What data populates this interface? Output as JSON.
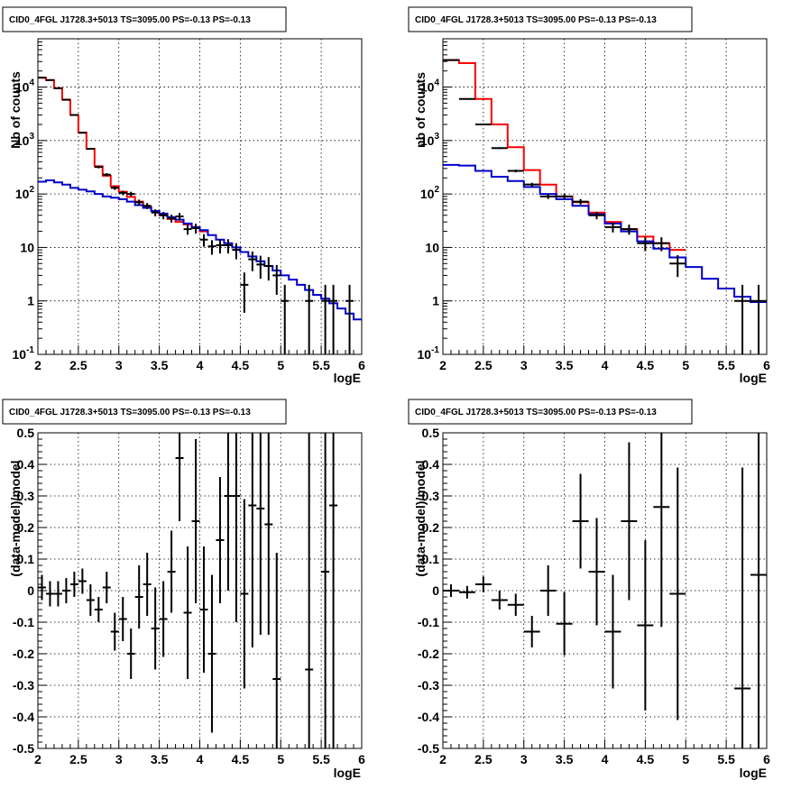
{
  "chart_data": [
    {
      "id": "p1",
      "type": "line",
      "title": "CID0_4FGL J1728.3+5013 TS=3095.00 PS=-0.13 PS=-0.13",
      "xlabel": "logE",
      "ylabel": "Nb of counts",
      "xlim": [
        2,
        6
      ],
      "ylim": [
        0.1,
        80000
      ],
      "yscale": "log",
      "grid": true,
      "xticks": [
        "2",
        "2.5",
        "3",
        "3.5",
        "4",
        "4.5",
        "5",
        "5.5",
        "6"
      ],
      "xtick_values": [
        2,
        2.5,
        3,
        3.5,
        4,
        4.5,
        5,
        5.5,
        6
      ],
      "yticks": [
        "10^-1",
        "1",
        "10",
        "10^2",
        "10^3",
        "10^4"
      ],
      "ytick_values": [
        0.1,
        1,
        10,
        100,
        1000,
        10000
      ],
      "bin_width": 0.1,
      "series": [
        {
          "color": "#ff0000",
          "style": "step",
          "x": [
            2.0,
            2.1,
            2.2,
            2.3,
            2.4,
            2.5,
            2.6,
            2.7,
            2.8,
            2.9,
            3.0,
            3.1,
            3.2,
            3.3,
            3.4,
            3.5,
            3.6,
            3.7,
            3.8,
            3.9,
            4.0
          ],
          "y": [
            15000,
            13500,
            9500,
            5800,
            3000,
            1400,
            700,
            330,
            220,
            140,
            110,
            88,
            72,
            58,
            48,
            40,
            34,
            30,
            27,
            24,
            20
          ]
        },
        {
          "color": "#0000cc",
          "style": "step",
          "x": [
            2.0,
            2.1,
            2.2,
            2.3,
            2.4,
            2.5,
            2.6,
            2.7,
            2.8,
            2.9,
            3.0,
            3.1,
            3.2,
            3.3,
            3.4,
            3.5,
            3.6,
            3.7,
            3.8,
            3.9,
            4.0,
            4.1,
            4.2,
            4.3,
            4.4,
            4.5,
            4.6,
            4.7,
            4.8,
            4.9,
            5.0,
            5.1,
            5.2,
            5.3,
            5.4,
            5.5,
            5.6,
            5.7,
            5.8,
            5.9
          ],
          "y": [
            170,
            180,
            165,
            150,
            130,
            120,
            112,
            100,
            90,
            85,
            80,
            72,
            62,
            55,
            48,
            43,
            37,
            33,
            28,
            24,
            21,
            17,
            14,
            12,
            10,
            8.2,
            6.8,
            5.5,
            4.5,
            3.7,
            3.0,
            2.5,
            2.0,
            1.6,
            1.3,
            1.1,
            0.9,
            0.72,
            0.58,
            0.45
          ]
        },
        {
          "color": "#000000",
          "style": "errorbar",
          "x": [
            2.05,
            2.15,
            2.25,
            2.35,
            2.45,
            2.55,
            2.65,
            2.75,
            2.85,
            2.95,
            3.05,
            3.15,
            3.25,
            3.35,
            3.45,
            3.55,
            3.65,
            3.75,
            3.85,
            3.95,
            4.05,
            4.15,
            4.25,
            4.35,
            4.45,
            4.55,
            4.65,
            4.75,
            4.85,
            4.95,
            5.05,
            5.35,
            5.55,
            5.65,
            5.85
          ],
          "y": [
            15000,
            13500,
            9500,
            5800,
            3000,
            1400,
            700,
            320,
            230,
            130,
            105,
            100,
            70,
            60,
            45,
            40,
            35,
            38,
            22,
            23,
            14,
            10.5,
            11,
            11,
            9,
            2,
            6,
            4.8,
            4.5,
            3,
            1,
            1,
            1,
            1,
            1
          ],
          "yerr": [
            120,
            115,
            95,
            75,
            55,
            38,
            27,
            18,
            15,
            11,
            10,
            10,
            8.4,
            7.7,
            6.7,
            6.3,
            5.9,
            6.2,
            4.7,
            4.8,
            3.7,
            3.2,
            3.3,
            3.3,
            3,
            1.4,
            2.4,
            2.2,
            2.1,
            1.7,
            1,
            1,
            1,
            1,
            1
          ]
        }
      ]
    },
    {
      "id": "p2",
      "type": "line",
      "title": "CID0_4FGL J1728.3+5013 TS=3095.00 PS=-0.13 PS=-0.13",
      "xlabel": "logE",
      "ylabel": "nb of counts",
      "xlim": [
        2,
        6
      ],
      "ylim": [
        0.1,
        80000
      ],
      "yscale": "log",
      "grid": true,
      "xticks": [
        "2",
        "2.5",
        "3",
        "3.5",
        "4",
        "4.5",
        "5",
        "5.5",
        "6"
      ],
      "xtick_values": [
        2,
        2.5,
        3,
        3.5,
        4,
        4.5,
        5,
        5.5,
        6
      ],
      "yticks": [
        "10^-1",
        "1",
        "10",
        "10^2",
        "10^3",
        "10^4"
      ],
      "ytick_values": [
        0.1,
        1,
        10,
        100,
        1000,
        10000
      ],
      "bin_width": 0.2,
      "series": [
        {
          "color": "#ff0000",
          "style": "step",
          "x": [
            2.0,
            2.2,
            2.4,
            2.6,
            2.8,
            3.0,
            3.2,
            3.4,
            3.6,
            3.8,
            4.0,
            4.2,
            4.4,
            4.6,
            4.8
          ],
          "y": [
            32000,
            28000,
            6000,
            2000,
            750,
            280,
            150,
            90,
            70,
            45,
            30,
            22,
            16,
            12,
            9
          ]
        },
        {
          "color": "#0000cc",
          "style": "step",
          "x": [
            2.0,
            2.2,
            2.4,
            2.6,
            2.8,
            3.0,
            3.2,
            3.4,
            3.6,
            3.8,
            4.0,
            4.2,
            4.4,
            4.6,
            4.8,
            5.0,
            5.2,
            5.4,
            5.6,
            5.8
          ],
          "y": [
            350,
            340,
            270,
            210,
            175,
            135,
            100,
            80,
            60,
            42,
            28,
            20,
            13,
            9.5,
            6.5,
            4.3,
            2.6,
            1.7,
            1.2,
            0.95
          ]
        },
        {
          "color": "#000000",
          "style": "errorbar",
          "x": [
            2.1,
            2.3,
            2.5,
            2.7,
            2.9,
            3.1,
            3.3,
            3.5,
            3.7,
            3.9,
            4.1,
            4.3,
            4.5,
            4.7,
            4.9,
            5.7,
            5.9
          ],
          "y": [
            32000,
            6000,
            2000,
            720,
            270,
            150,
            90,
            90,
            72,
            40,
            24,
            22,
            12,
            12,
            5,
            1,
            1
          ],
          "yerr": [
            180,
            78,
            45,
            27,
            16,
            12,
            9.5,
            9.5,
            8.5,
            6.3,
            4.9,
            4.7,
            3.5,
            3.5,
            2.2,
            1,
            1
          ]
        }
      ]
    },
    {
      "id": "p3",
      "type": "scatter",
      "title": "CID0_4FGL J1728.3+5013 TS=3095.00 PS=-0.13 PS=-0.13",
      "xlabel": "logE",
      "ylabel": "(data-model)/model",
      "xlim": [
        2,
        6
      ],
      "ylim": [
        -0.5,
        0.5
      ],
      "grid": true,
      "xticks": [
        "2",
        "2.5",
        "3",
        "3.5",
        "4",
        "4.5",
        "5",
        "5.5",
        "6"
      ],
      "xtick_values": [
        2,
        2.5,
        3,
        3.5,
        4,
        4.5,
        5,
        5.5,
        6
      ],
      "yticks": [
        "-0.5",
        "-0.4",
        "-0.3",
        "-0.2",
        "-0.1",
        "0",
        "0.1",
        "0.2",
        "0.3",
        "0.4",
        "0.5"
      ],
      "ytick_values": [
        -0.5,
        -0.4,
        -0.3,
        -0.2,
        -0.1,
        0,
        0.1,
        0.2,
        0.3,
        0.4,
        0.5
      ],
      "bin_width": 0.1,
      "series": [
        {
          "color": "#000000",
          "style": "errorbar",
          "x": [
            2.05,
            2.15,
            2.25,
            2.35,
            2.45,
            2.55,
            2.65,
            2.75,
            2.85,
            2.95,
            3.05,
            3.15,
            3.25,
            3.35,
            3.45,
            3.55,
            3.65,
            3.75,
            3.85,
            3.95,
            4.05,
            4.15,
            4.25,
            4.35,
            4.45,
            4.55,
            4.65,
            4.75,
            4.85,
            4.95,
            5.35,
            5.55,
            5.65
          ],
          "y": [
            0.01,
            -0.01,
            -0.01,
            0.0,
            0.02,
            0.03,
            -0.03,
            -0.06,
            0.01,
            -0.13,
            -0.09,
            -0.2,
            -0.02,
            0.02,
            -0.12,
            -0.09,
            0.06,
            0.42,
            -0.07,
            0.22,
            -0.06,
            -0.2,
            0.16,
            0.3,
            0.3,
            -0.01,
            0.27,
            0.26,
            0.21,
            -0.28,
            -0.25,
            0.06,
            0.27
          ],
          "yerr": [
            0.04,
            0.04,
            0.04,
            0.04,
            0.04,
            0.04,
            0.05,
            0.04,
            0.05,
            0.06,
            0.07,
            0.08,
            0.1,
            0.1,
            0.13,
            0.12,
            0.13,
            0.2,
            0.21,
            0.26,
            0.2,
            0.25,
            0.2,
            0.3,
            0.4,
            0.3,
            0.45,
            0.4,
            0.35,
            0.4,
            0.8,
            0.8,
            0.8
          ]
        }
      ]
    },
    {
      "id": "p4",
      "type": "scatter",
      "title": "CID0_4FGL J1728.3+5013 TS=3095.00 PS=-0.13 PS=-0.13",
      "xlabel": "logE",
      "ylabel": "(data-model)/model",
      "xlim": [
        2,
        6
      ],
      "ylim": [
        -0.5,
        0.5
      ],
      "grid": true,
      "xticks": [
        "2",
        "2.5",
        "3",
        "3.5",
        "4",
        "4.5",
        "5",
        "5.5",
        "6"
      ],
      "xtick_values": [
        2,
        2.5,
        3,
        3.5,
        4,
        4.5,
        5,
        5.5,
        6
      ],
      "yticks": [
        "-0.5",
        "-0.4",
        "-0.3",
        "-0.2",
        "-0.1",
        "0",
        "0.1",
        "0.2",
        "0.3",
        "0.4",
        "0.5"
      ],
      "ytick_values": [
        -0.5,
        -0.4,
        -0.3,
        -0.2,
        -0.1,
        0,
        0.1,
        0.2,
        0.3,
        0.4,
        0.5
      ],
      "bin_width": 0.2,
      "series": [
        {
          "color": "#000000",
          "style": "errorbar",
          "x": [
            2.1,
            2.3,
            2.5,
            2.7,
            2.9,
            3.1,
            3.3,
            3.5,
            3.7,
            3.9,
            4.1,
            4.3,
            4.5,
            4.7,
            4.9,
            5.7,
            5.9
          ],
          "y": [
            0.0,
            -0.005,
            0.02,
            -0.03,
            -0.045,
            -0.13,
            0.0,
            -0.105,
            0.22,
            0.06,
            -0.13,
            0.22,
            -0.11,
            0.265,
            -0.01,
            -0.31,
            0.05
          ],
          "yerr": [
            0.02,
            0.02,
            0.025,
            0.03,
            0.035,
            0.05,
            0.08,
            0.1,
            0.15,
            0.17,
            0.18,
            0.25,
            0.27,
            0.38,
            0.4,
            0.7,
            0.7
          ]
        }
      ]
    }
  ]
}
